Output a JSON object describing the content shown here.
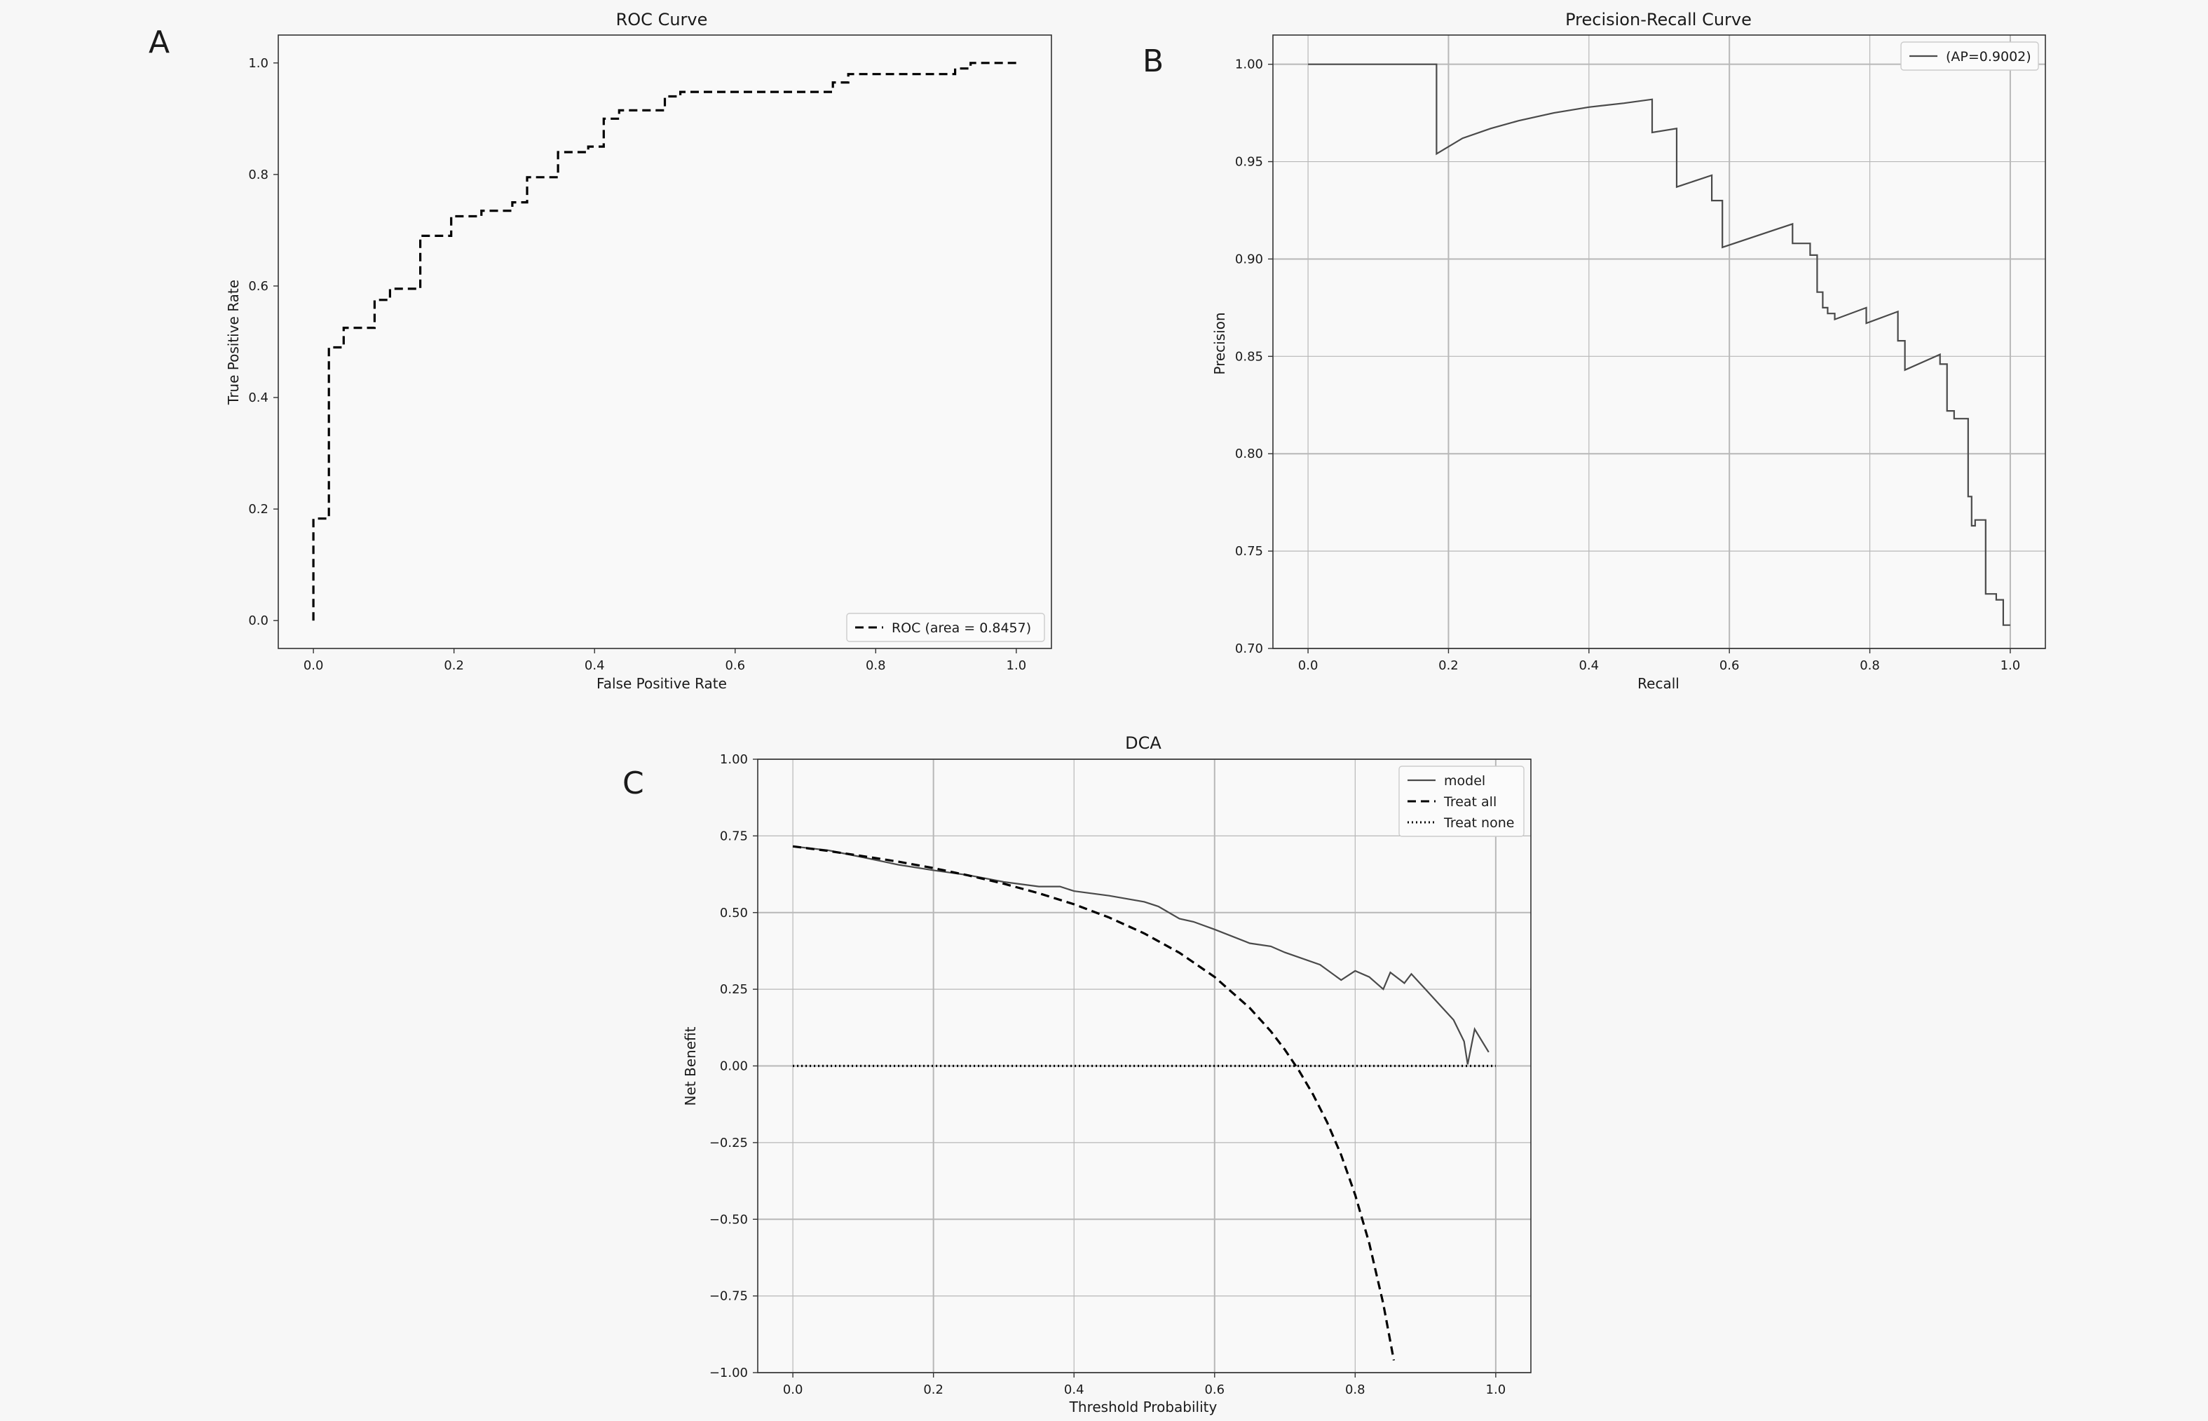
{
  "colors": {
    "background": "#f7f7f7",
    "axes_face": "#f9f9f9",
    "curve_dark": "#4a4a4a",
    "curve_blue": "#1f77b4",
    "black": "#000000",
    "grid": "#b8b8b8"
  },
  "chart_data": [
    {
      "panel": "A",
      "type": "line",
      "title": "ROC Curve",
      "xlabel": "False Positive Rate",
      "ylabel": "True Positive Rate",
      "xlim": [
        -0.05,
        1.05
      ],
      "ylim": [
        -0.05,
        1.05
      ],
      "xticks": [
        0.0,
        0.2,
        0.4,
        0.6,
        0.8,
        1.0
      ],
      "xtick_labels": [
        "0.0",
        "0.2",
        "0.4",
        "0.6",
        "0.8",
        "1.0"
      ],
      "yticks": [
        0.0,
        0.2,
        0.4,
        0.6,
        0.8,
        1.0
      ],
      "ytick_labels": [
        "0.0",
        "0.2",
        "0.4",
        "0.6",
        "0.8",
        "1.0"
      ],
      "grid": false,
      "legend_position": "lower-right",
      "series": [
        {
          "name": "ROC (area = 0.8457)",
          "style": "dashed",
          "color": "#000000",
          "x": [
            0.0,
            0.0,
            0.022,
            0.022,
            0.043,
            0.043,
            0.087,
            0.087,
            0.109,
            0.109,
            0.152,
            0.152,
            0.196,
            0.196,
            0.239,
            0.239,
            0.283,
            0.283,
            0.304,
            0.304,
            0.348,
            0.348,
            0.391,
            0.391,
            0.413,
            0.413,
            0.435,
            0.435,
            0.5,
            0.5,
            0.522,
            0.522,
            0.739,
            0.739,
            0.761,
            0.761,
            0.913,
            0.913,
            0.935,
            0.935,
            1.0
          ],
          "y": [
            0.0,
            0.183,
            0.183,
            0.49,
            0.49,
            0.525,
            0.525,
            0.575,
            0.575,
            0.595,
            0.595,
            0.69,
            0.69,
            0.725,
            0.725,
            0.735,
            0.735,
            0.75,
            0.75,
            0.795,
            0.795,
            0.84,
            0.84,
            0.85,
            0.85,
            0.9,
            0.9,
            0.915,
            0.915,
            0.94,
            0.94,
            0.948,
            0.948,
            0.965,
            0.965,
            0.98,
            0.98,
            0.99,
            0.99,
            1.0,
            1.0
          ]
        }
      ]
    },
    {
      "panel": "B",
      "type": "line",
      "title": "Precision-Recall Curve",
      "xlabel": "Recall",
      "ylabel": "Precision",
      "xlim": [
        -0.05,
        1.05
      ],
      "ylim": [
        0.7,
        1.015
      ],
      "xticks": [
        0.0,
        0.2,
        0.4,
        0.6,
        0.8,
        1.0
      ],
      "xtick_labels": [
        "0.0",
        "0.2",
        "0.4",
        "0.6",
        "0.8",
        "1.0"
      ],
      "yticks": [
        0.7,
        0.75,
        0.8,
        0.85,
        0.9,
        0.95,
        1.0
      ],
      "ytick_labels": [
        "0.70",
        "0.75",
        "0.80",
        "0.85",
        "0.90",
        "0.95",
        "1.00"
      ],
      "grid": true,
      "legend_position": "upper-right",
      "series": [
        {
          "name": "(AP=0.9002)",
          "style": "solid",
          "color": "#4a4a4a",
          "x": [
            0.0,
            0.183,
            0.183,
            0.22,
            0.26,
            0.3,
            0.35,
            0.4,
            0.45,
            0.49,
            0.49,
            0.525,
            0.525,
            0.575,
            0.575,
            0.59,
            0.59,
            0.69,
            0.69,
            0.715,
            0.715,
            0.725,
            0.725,
            0.733,
            0.733,
            0.74,
            0.74,
            0.75,
            0.75,
            0.795,
            0.795,
            0.84,
            0.84,
            0.85,
            0.85,
            0.9,
            0.9,
            0.91,
            0.91,
            0.92,
            0.92,
            0.94,
            0.94,
            0.945,
            0.945,
            0.95,
            0.95,
            0.965,
            0.965,
            0.98,
            0.98,
            0.99,
            0.99,
            1.0
          ],
          "y": [
            1.0,
            1.0,
            0.954,
            0.962,
            0.967,
            0.971,
            0.975,
            0.978,
            0.98,
            0.982,
            0.965,
            0.967,
            0.937,
            0.943,
            0.93,
            0.93,
            0.906,
            0.918,
            0.908,
            0.908,
            0.902,
            0.902,
            0.883,
            0.883,
            0.875,
            0.875,
            0.872,
            0.872,
            0.869,
            0.875,
            0.867,
            0.873,
            0.858,
            0.858,
            0.843,
            0.851,
            0.846,
            0.846,
            0.822,
            0.822,
            0.818,
            0.818,
            0.778,
            0.778,
            0.763,
            0.763,
            0.766,
            0.766,
            0.728,
            0.728,
            0.725,
            0.725,
            0.712,
            0.712
          ]
        }
      ]
    },
    {
      "panel": "C",
      "type": "line",
      "title": "DCA",
      "xlabel": "Threshold Probability",
      "ylabel": "Net Benefit",
      "xlim": [
        -0.05,
        1.05
      ],
      "ylim": [
        -1.0,
        1.0
      ],
      "xticks": [
        0.0,
        0.2,
        0.4,
        0.6,
        0.8,
        1.0
      ],
      "xtick_labels": [
        "0.0",
        "0.2",
        "0.4",
        "0.6",
        "0.8",
        "1.0"
      ],
      "yticks": [
        -1.0,
        -0.75,
        -0.5,
        -0.25,
        0.0,
        0.25,
        0.5,
        0.75,
        1.0
      ],
      "ytick_labels": [
        "−1.00",
        "−0.75",
        "−0.50",
        "−0.25",
        "0.00",
        "0.25",
        "0.50",
        "0.75",
        "1.00"
      ],
      "grid": true,
      "legend_position": "upper-right",
      "series": [
        {
          "name": "model",
          "style": "solid",
          "color": "#4a4a4a",
          "x": [
            0.0,
            0.05,
            0.1,
            0.15,
            0.2,
            0.25,
            0.3,
            0.35,
            0.38,
            0.4,
            0.45,
            0.5,
            0.52,
            0.55,
            0.57,
            0.6,
            0.65,
            0.68,
            0.7,
            0.75,
            0.78,
            0.8,
            0.82,
            0.84,
            0.85,
            0.87,
            0.88,
            0.9,
            0.92,
            0.94,
            0.955,
            0.96,
            0.97,
            0.99
          ],
          "y": [
            0.716,
            0.703,
            0.68,
            0.656,
            0.638,
            0.622,
            0.6,
            0.585,
            0.585,
            0.57,
            0.555,
            0.535,
            0.52,
            0.48,
            0.47,
            0.445,
            0.4,
            0.39,
            0.37,
            0.33,
            0.28,
            0.31,
            0.29,
            0.25,
            0.305,
            0.27,
            0.3,
            0.25,
            0.2,
            0.15,
            0.08,
            0.005,
            0.12,
            0.045
          ]
        },
        {
          "name": "Treat all",
          "style": "dashed",
          "color": "#000000",
          "x": [
            0.0,
            0.05,
            0.1,
            0.15,
            0.2,
            0.25,
            0.3,
            0.35,
            0.4,
            0.45,
            0.5,
            0.55,
            0.6,
            0.65,
            0.68,
            0.7,
            0.72,
            0.74,
            0.76,
            0.78,
            0.8,
            0.82,
            0.84,
            0.855
          ],
          "y": [
            0.716,
            0.701,
            0.684,
            0.666,
            0.645,
            0.621,
            0.594,
            0.563,
            0.527,
            0.484,
            0.432,
            0.369,
            0.29,
            0.189,
            0.113,
            0.053,
            -0.015,
            -0.093,
            -0.183,
            -0.29,
            -0.42,
            -0.578,
            -0.775,
            -0.96
          ]
        },
        {
          "name": "Treat none",
          "style": "dotted",
          "color": "#000000",
          "x": [
            0.0,
            1.0
          ],
          "y": [
            0.0,
            0.0
          ]
        }
      ]
    }
  ]
}
